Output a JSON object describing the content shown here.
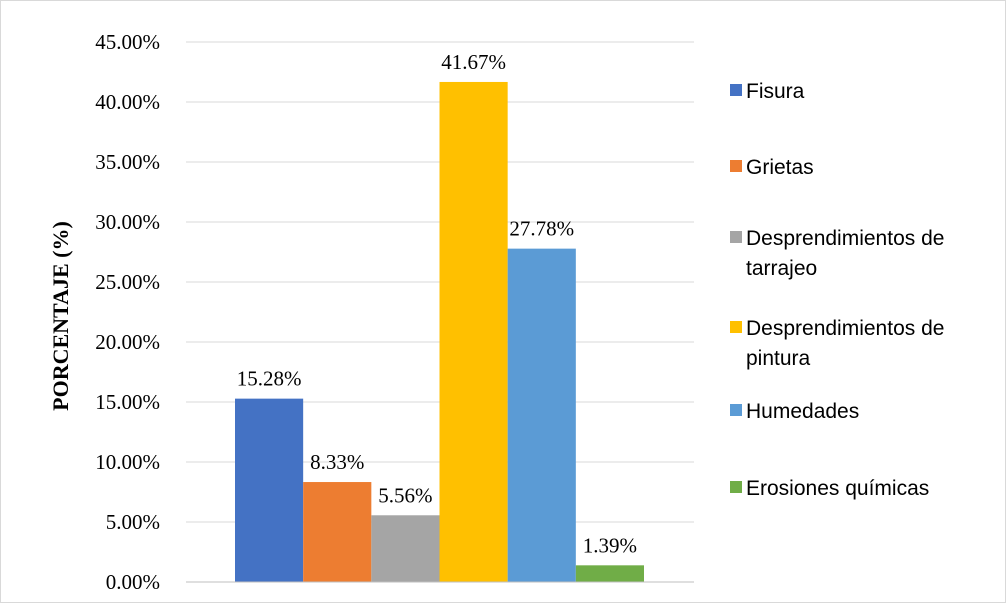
{
  "chart_data": {
    "type": "bar",
    "title": "",
    "xlabel": "",
    "ylabel": "PORCENTAJE (%)",
    "ylim": [
      0,
      45
    ],
    "y_ticks": [
      "0.00%",
      "5.00%",
      "10.00%",
      "15.00%",
      "20.00%",
      "25.00%",
      "30.00%",
      "35.00%",
      "40.00%",
      "45.00%"
    ],
    "y_tick_values": [
      0,
      5,
      10,
      15,
      20,
      25,
      30,
      35,
      40,
      45
    ],
    "grid": true,
    "legend_position": "right",
    "categories": [
      ""
    ],
    "series": [
      {
        "name": "Fisura",
        "value": 15.28,
        "label": "15.28%",
        "color": "#4472c4"
      },
      {
        "name": "Grietas",
        "value": 8.33,
        "label": "8.33%",
        "color": "#ed7d31"
      },
      {
        "name": "Desprendimientos de tarrajeo",
        "legend_lines": [
          "Desprendimientos de",
          "tarrajeo"
        ],
        "value": 5.56,
        "label": "5.56%",
        "color": "#a5a5a5"
      },
      {
        "name": "Desprendimientos de pintura",
        "legend_lines": [
          "Desprendimientos de",
          "pintura"
        ],
        "value": 41.67,
        "label": "41.67%",
        "color": "#ffc000"
      },
      {
        "name": "Humedades",
        "value": 27.78,
        "label": "27.78%",
        "color": "#5b9bd5"
      },
      {
        "name": "Erosiones químicas",
        "value": 1.39,
        "label": "1.39%",
        "color": "#70ad47"
      }
    ]
  }
}
